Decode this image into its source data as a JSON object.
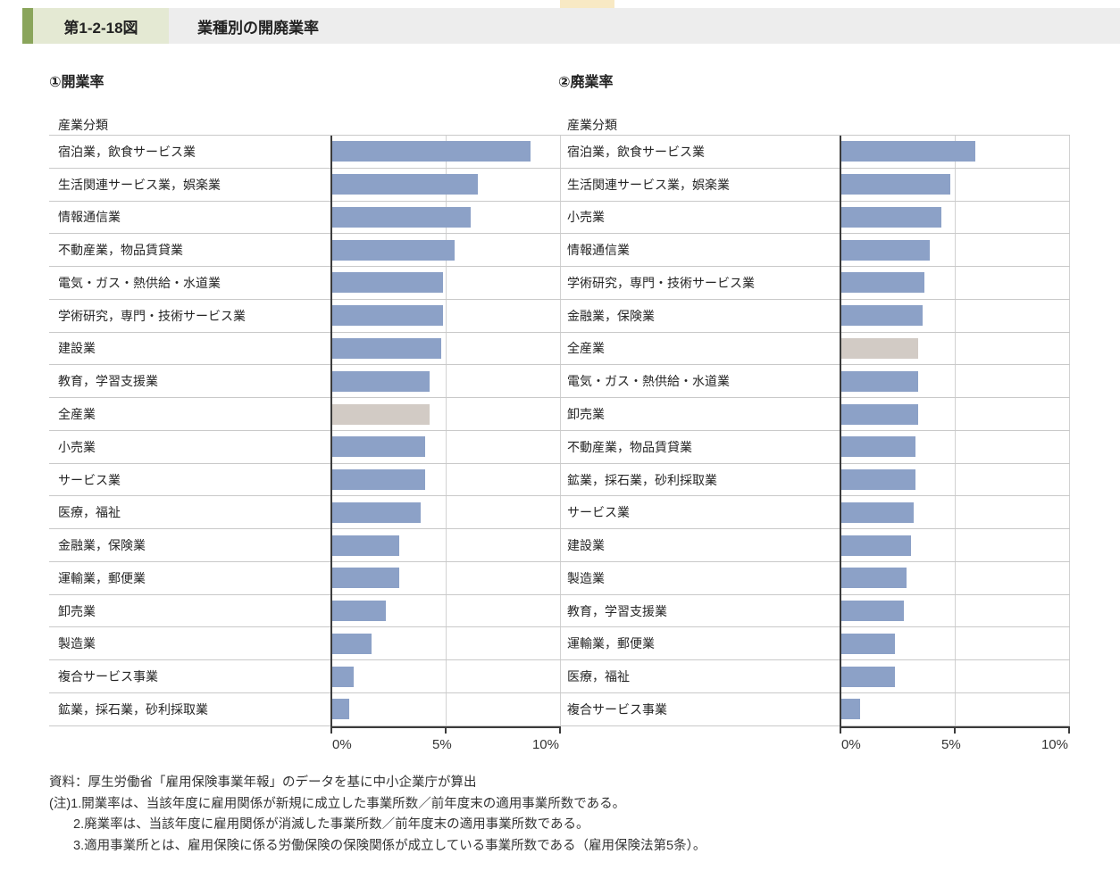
{
  "header": {
    "figure_label": "第1-2-18図",
    "figure_title": "業種別の開廃業率"
  },
  "colors": {
    "bar_blue": "#8ca1c7",
    "bar_highlight_gray": "#d2cbc5",
    "header_accent_green": "#8aa55b",
    "figure_label_bg": "#e4e9d3",
    "header_band_bg": "#ededed",
    "axis_dark": "#3c3c3c",
    "gridline_gray": "#c9c9c9",
    "top_strip_yellow": "#f8e9c4"
  },
  "chart_data": [
    {
      "type": "bar",
      "orientation": "horizontal",
      "title": "①開業率",
      "column_header": "産業分類",
      "unit": "%",
      "xlim": [
        0,
        10
      ],
      "x_ticks": [
        "0%",
        "5%",
        "10%"
      ],
      "grid": true,
      "highlight_category": "全産業",
      "categories": [
        "宿泊業，飲食サービス業",
        "生活関連サービス業，娯楽業",
        "情報通信業",
        "不動産業，物品賃貸業",
        "電気・ガス・熱供給・水道業",
        "学術研究，専門・技術サービス業",
        "建設業",
        "教育，学習支援業",
        "全産業",
        "小売業",
        "サービス業",
        "医療，福祉",
        "金融業，保険業",
        "運輸業，郵便業",
        "卸売業",
        "製造業",
        "複合サービス事業",
        "鉱業，採石業，砂利採取業"
      ],
      "values": [
        8.7,
        6.4,
        6.1,
        5.4,
        4.9,
        4.9,
        4.8,
        4.3,
        4.3,
        4.1,
        4.1,
        3.9,
        3.0,
        3.0,
        2.4,
        1.8,
        1.0,
        0.8
      ]
    },
    {
      "type": "bar",
      "orientation": "horizontal",
      "title": "②廃業率",
      "column_header": "産業分類",
      "unit": "%",
      "xlim": [
        0,
        10
      ],
      "x_ticks": [
        "0%",
        "5%",
        "10%"
      ],
      "grid": true,
      "highlight_category": "全産業",
      "categories": [
        "宿泊業，飲食サービス業",
        "生活関連サービス業，娯楽業",
        "小売業",
        "情報通信業",
        "学術研究，専門・技術サービス業",
        "金融業，保険業",
        "全産業",
        "電気・ガス・熱供給・水道業",
        "卸売業",
        "不動産業，物品賃貸業",
        "鉱業，採石業，砂利採取業",
        "サービス業",
        "建設業",
        "製造業",
        "教育，学習支援業",
        "運輸業，郵便業",
        "医療，福祉",
        "複合サービス事業"
      ],
      "values": [
        5.9,
        4.8,
        4.4,
        3.9,
        3.7,
        3.6,
        3.4,
        3.4,
        3.4,
        3.3,
        3.3,
        3.2,
        3.1,
        2.9,
        2.8,
        2.4,
        2.4,
        0.9
      ]
    }
  ],
  "notes": {
    "lines": [
      "資料：厚生労働省「雇用保険事業年報」のデータを基に中小企業庁が算出",
      "(注)1.開業率は、当該年度に雇用関係が新規に成立した事業所数／前年度末の適用事業所数である。",
      "2.廃業率は、当該年度に雇用関係が消滅した事業所数／前年度末の適用事業所数である。",
      "3.適用事業所とは、雇用保険に係る労働保険の保険関係が成立している事業所数である（雇用保険法第5条）。"
    ]
  }
}
